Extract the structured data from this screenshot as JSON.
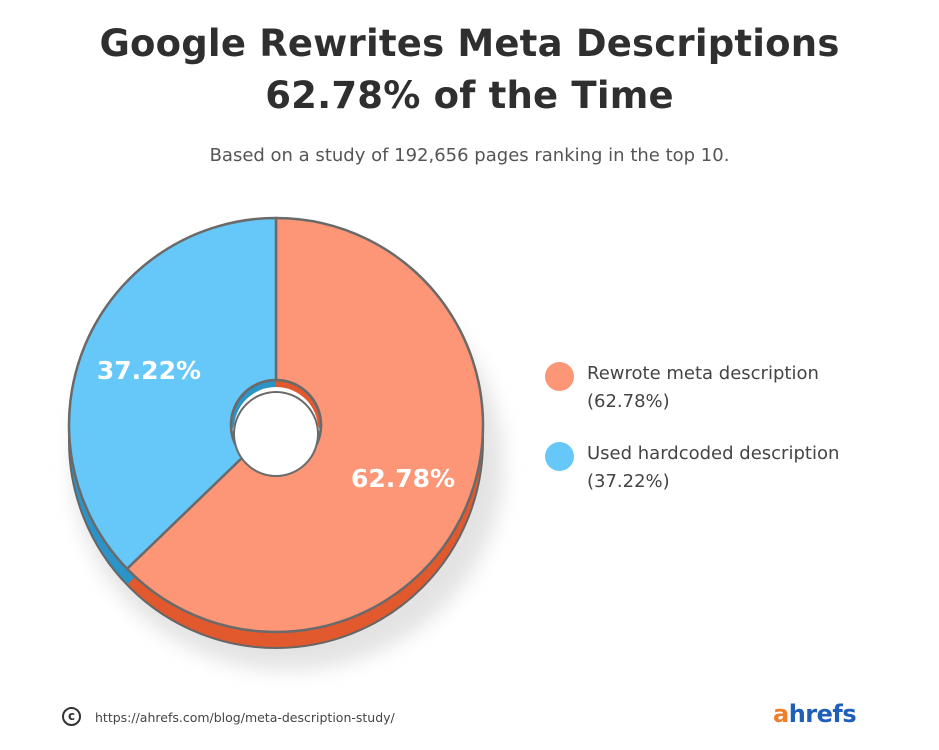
{
  "header": {
    "title_line1": "Google Rewrites Meta Descriptions",
    "title_line2": "62.78% of the Time",
    "subtitle": "Based on a study of 192,656 pages ranking in the top 10."
  },
  "chart_data": {
    "type": "pie",
    "donut": true,
    "slices": [
      {
        "label": "Rewrote meta description",
        "value": 62.78,
        "value_label": "62.78%",
        "legend_value": "(62.78%)",
        "color": "#fc9677",
        "side_color": "#e2592e"
      },
      {
        "label": "Used hardcoded description",
        "value": 37.22,
        "value_label": "37.22%",
        "legend_value": "(37.22%)",
        "color": "#66c7f9",
        "side_color": "#2b94c9"
      }
    ],
    "legend_position": "right"
  },
  "footer": {
    "copyright_symbol": "c",
    "source_url": "https://ahrefs.com/blog/meta-description-study/",
    "brand_first": "a",
    "brand_rest": "hrefs"
  }
}
